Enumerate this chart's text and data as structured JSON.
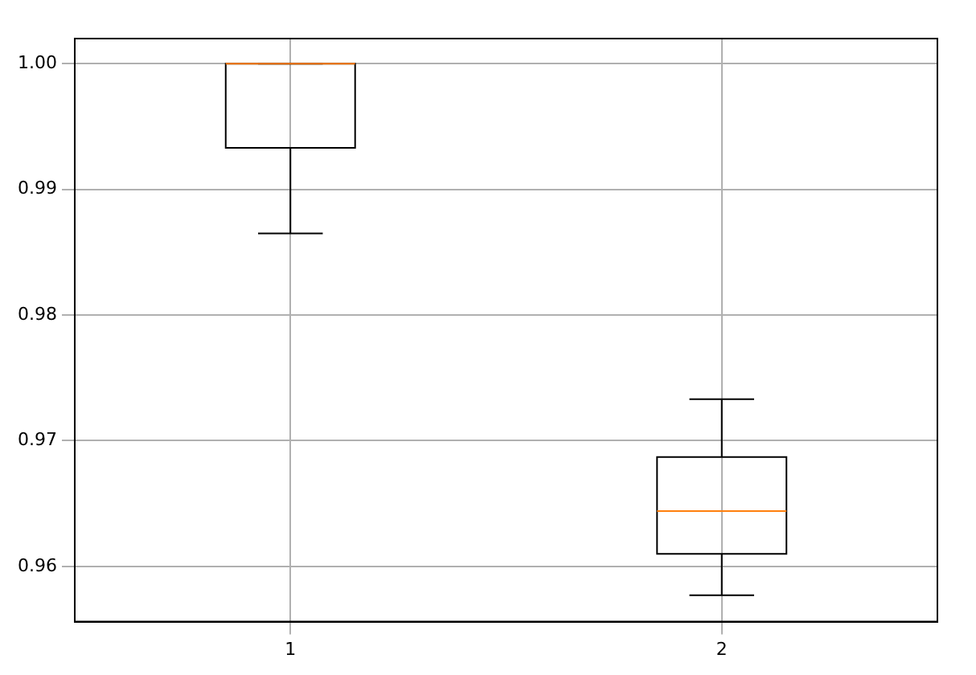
{
  "chart_data": {
    "type": "box",
    "categories": [
      "1",
      "2"
    ],
    "color": "#000000",
    "boxes": [
      {
        "low": 0.9865,
        "q1": 0.9933,
        "median": 1.0,
        "q3": 1.0,
        "high": 1.0
      },
      {
        "low": 0.9577,
        "q1": 0.961,
        "median": 0.9644,
        "q3": 0.9687,
        "high": 0.9733
      }
    ],
    "ylim": [
      0.9556,
      1.002
    ],
    "yticks": [
      {
        "value": 0.96,
        "label": "0.96"
      },
      {
        "value": 0.97,
        "label": "0.97"
      },
      {
        "value": 0.98,
        "label": "0.98"
      },
      {
        "value": 0.99,
        "label": "0.99"
      },
      {
        "value": 1.0,
        "label": "1.00"
      }
    ],
    "grid": true
  }
}
